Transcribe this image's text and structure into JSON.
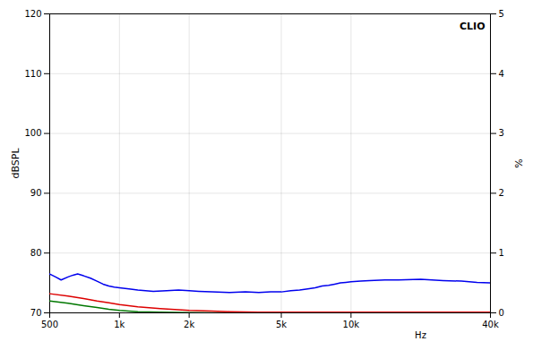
{
  "chart_data": {
    "type": "line",
    "ylabel": "dBSPL",
    "y2label": "%",
    "annotations": [
      "Hz",
      "CLIO"
    ],
    "log": "x",
    "grid": true,
    "xlim": [
      500,
      40000
    ],
    "xticks": [
      500,
      {
        "value": 1000,
        "label": "1k"
      },
      {
        "value": 2000,
        "label": "2k"
      },
      {
        "value": 5000,
        "label": "5k"
      },
      {
        "value": 10000,
        "label": "10k"
      },
      {
        "value": 40000,
        "label": "40k"
      }
    ],
    "ylim": [
      70,
      120
    ],
    "yticks": [
      70,
      80,
      90,
      100,
      110,
      120
    ],
    "y2lim": [
      0,
      5
    ],
    "y2ticks": [
      0,
      1,
      2,
      3,
      4,
      5
    ],
    "series": [
      {
        "color": "#007700",
        "x": [
          500,
          600,
          700,
          800,
          900,
          1000,
          1200,
          1500,
          2000,
          2500,
          3000,
          4000,
          5000,
          6000,
          7000,
          8000,
          10000,
          12000,
          15000,
          20000,
          30000,
          40000
        ],
        "values": [
          72.0,
          71.6,
          71.2,
          70.9,
          70.6,
          70.4,
          70.2,
          70.1,
          70.05,
          70.0,
          70.0,
          70.0,
          70.0,
          70.0,
          70.0,
          70.0,
          70.0,
          70.0,
          70.0,
          70.0,
          70.0,
          70.0
        ]
      },
      {
        "color": "#dd0000",
        "x": [
          500,
          600,
          700,
          800,
          900,
          1000,
          1200,
          1500,
          2000,
          2500,
          3000,
          4000,
          5000,
          6000,
          7000,
          8000,
          10000,
          12000,
          15000,
          20000,
          30000,
          40000
        ],
        "values": [
          73.2,
          72.8,
          72.4,
          72.0,
          71.7,
          71.4,
          71.0,
          70.7,
          70.4,
          70.3,
          70.2,
          70.1,
          70.1,
          70.1,
          70.1,
          70.1,
          70.1,
          70.1,
          70.1,
          70.1,
          70.1,
          70.1
        ]
      },
      {
        "color": "#0000ee",
        "x": [
          500,
          530,
          560,
          600,
          630,
          660,
          700,
          750,
          800,
          850,
          900,
          950,
          1000,
          1100,
          1200,
          1400,
          1600,
          1800,
          2000,
          2200,
          2500,
          3000,
          3500,
          4000,
          4500,
          5000,
          5500,
          6000,
          6500,
          7000,
          7500,
          8000,
          8500,
          9000,
          9500,
          10000,
          11000,
          12000,
          14000,
          16000,
          20000,
          25000,
          30000,
          35000,
          40000
        ],
        "values": [
          76.5,
          76.0,
          75.5,
          76.0,
          76.3,
          76.5,
          76.2,
          75.8,
          75.3,
          74.8,
          74.5,
          74.3,
          74.2,
          74.0,
          73.8,
          73.6,
          73.7,
          73.8,
          73.7,
          73.6,
          73.5,
          73.4,
          73.5,
          73.4,
          73.5,
          73.5,
          73.7,
          73.8,
          74.0,
          74.2,
          74.5,
          74.6,
          74.8,
          75.0,
          75.1,
          75.2,
          75.3,
          75.4,
          75.5,
          75.5,
          75.6,
          75.4,
          75.3,
          75.1,
          75.0
        ]
      }
    ]
  }
}
